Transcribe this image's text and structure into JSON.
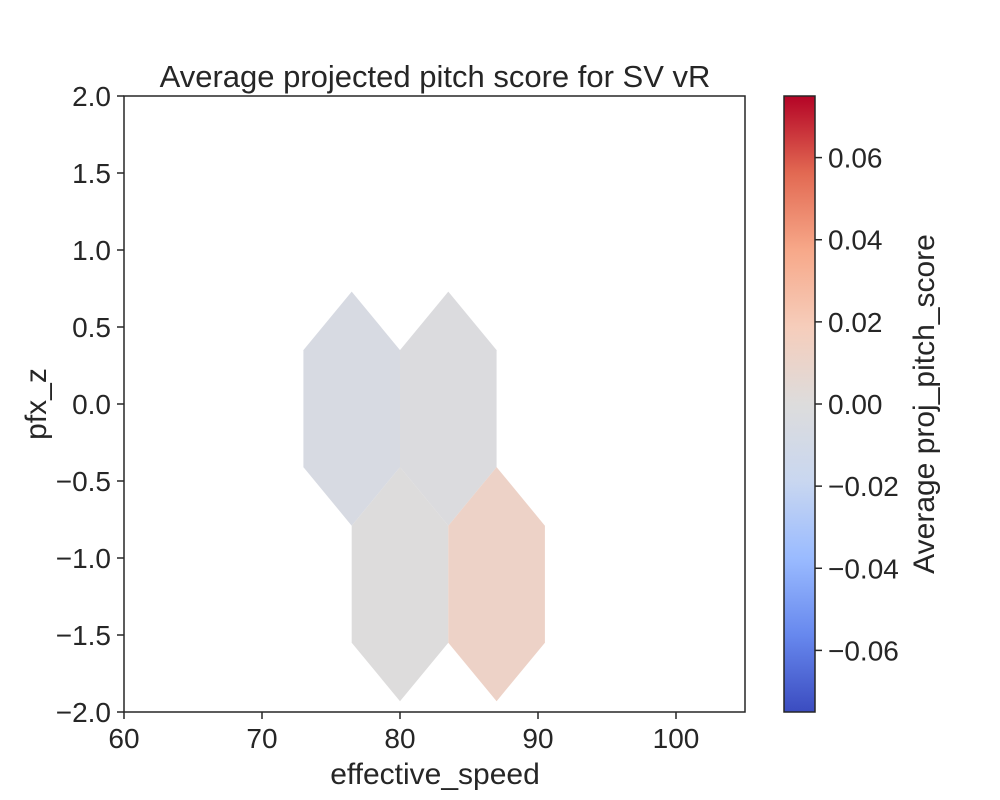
{
  "chart_data": {
    "type": "hexbin",
    "title": "Average projected pitch score for SV vR",
    "xlabel": "effective_speed",
    "ylabel": "pfx_z",
    "xlim": [
      60,
      105
    ],
    "ylim": [
      -2.0,
      2.0
    ],
    "xticks": [
      60,
      70,
      80,
      90,
      100
    ],
    "xtick_labels": [
      "60",
      "70",
      "80",
      "90",
      "100"
    ],
    "yticks": [
      2.0,
      1.5,
      1.0,
      0.5,
      0.0,
      -0.5,
      -1.0,
      -1.5,
      -2.0
    ],
    "ytick_labels": [
      "2.0",
      "1.5",
      "1.0",
      "0.5",
      "0.0",
      "−0.5",
      "−1.0",
      "−1.5",
      "−2.0"
    ],
    "hex_half_width": 3.5,
    "hex_half_height": 0.76,
    "cells": [
      {
        "x": 76.5,
        "y": -0.03,
        "value": -0.006
      },
      {
        "x": 83.5,
        "y": -0.03,
        "value": -0.002
      },
      {
        "x": 80.0,
        "y": -1.17,
        "value": 0.0
      },
      {
        "x": 87.0,
        "y": -1.17,
        "value": 0.012
      }
    ],
    "colorbar": {
      "label": "Average proj_pitch_score",
      "vmin": -0.075,
      "vmax": 0.075,
      "ticks": [
        0.06,
        0.04,
        0.02,
        0.0,
        -0.02,
        -0.04,
        -0.06
      ],
      "tick_labels": [
        "0.06",
        "0.04",
        "0.02",
        "0.00",
        "−0.02",
        "−0.04",
        "−0.06"
      ],
      "colormap": "coolwarm",
      "stops": [
        "#3b4cc0",
        "#6788ee",
        "#9abbff",
        "#c9d7f0",
        "#dddcdc",
        "#f6cdbb",
        "#f7a889",
        "#e26952",
        "#b40426"
      ]
    }
  }
}
